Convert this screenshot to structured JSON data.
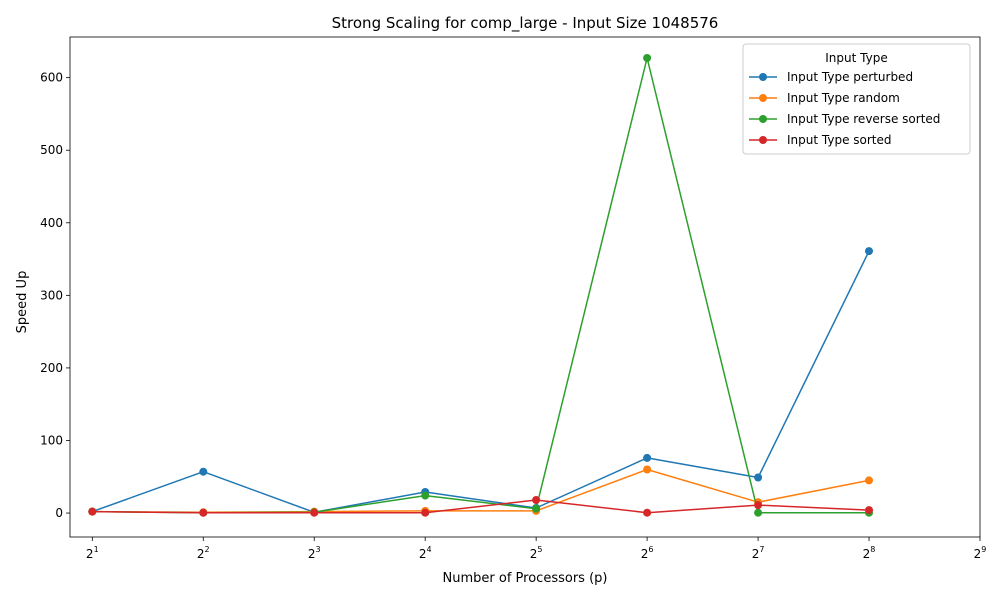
{
  "chart_data": {
    "type": "line",
    "title": "Strong Scaling for comp_large - Input Size 1048576",
    "xlabel": "Number of Processors (p)",
    "ylabel": "Speed Up",
    "x_scale": "log2",
    "x": [
      2,
      4,
      8,
      16,
      32,
      64,
      128,
      256
    ],
    "x_ticks": [
      {
        "value": 2,
        "base": "2",
        "exp": "1"
      },
      {
        "value": 4,
        "base": "2",
        "exp": "2"
      },
      {
        "value": 8,
        "base": "2",
        "exp": "3"
      },
      {
        "value": 16,
        "base": "2",
        "exp": "4"
      },
      {
        "value": 32,
        "base": "2",
        "exp": "5"
      },
      {
        "value": 64,
        "base": "2",
        "exp": "6"
      },
      {
        "value": 128,
        "base": "2",
        "exp": "7"
      },
      {
        "value": 256,
        "base": "2",
        "exp": "8"
      },
      {
        "value": 512,
        "base": "2",
        "exp": "9"
      }
    ],
    "xlim": [
      1.74,
      512
    ],
    "ylim": [
      -33,
      656
    ],
    "y_ticks": [
      0,
      100,
      200,
      300,
      400,
      500,
      600
    ],
    "grid": false,
    "legend": {
      "title": "Input Type",
      "placement": "top-right"
    },
    "series": [
      {
        "name": "Input Type perturbed",
        "color": "#1f77b4",
        "values": [
          2,
          57,
          1,
          29,
          7,
          76,
          49,
          361
        ]
      },
      {
        "name": "Input Type random",
        "color": "#ff7f0e",
        "values": [
          2,
          1,
          2,
          3,
          3,
          60,
          15,
          45
        ]
      },
      {
        "name": "Input Type reverse sorted",
        "color": "#2ca02c",
        "values": [
          2,
          0.5,
          1,
          24,
          6,
          627,
          0.5,
          0.5
        ]
      },
      {
        "name": "Input Type sorted",
        "color": "#d62728",
        "values": [
          2,
          0.5,
          0.5,
          0.5,
          18,
          0.5,
          11,
          4
        ]
      }
    ]
  }
}
